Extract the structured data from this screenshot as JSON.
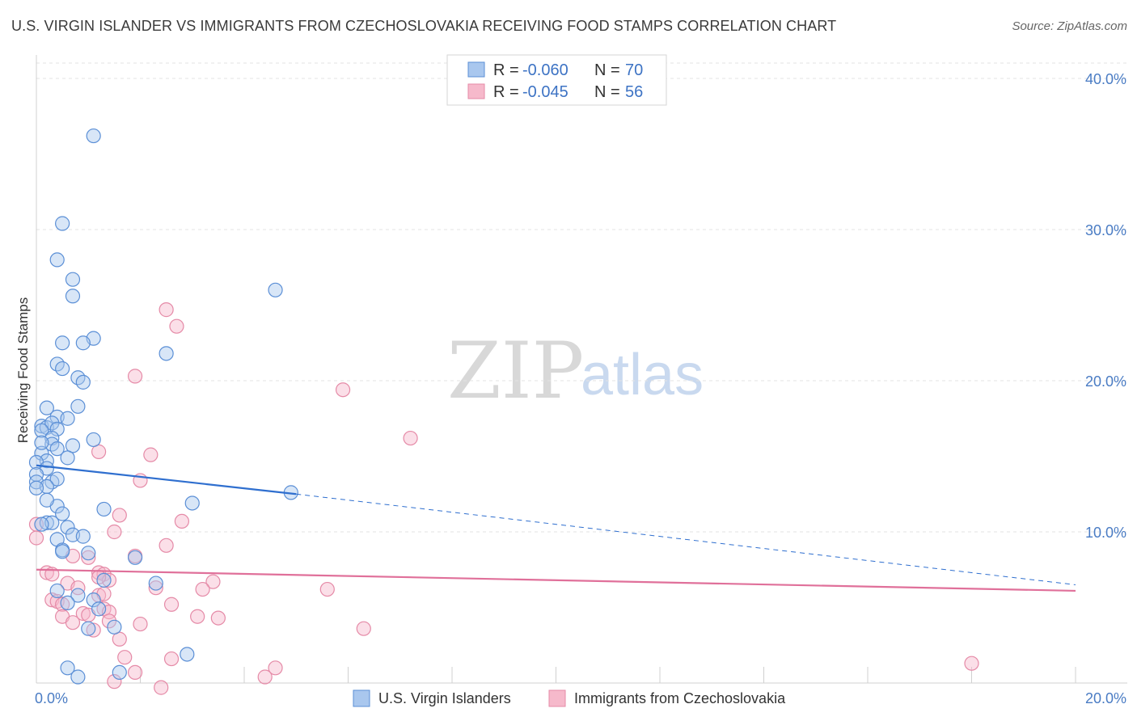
{
  "title": "U.S. VIRGIN ISLANDER VS IMMIGRANTS FROM CZECHOSLOVAKIA RECEIVING FOOD STAMPS CORRELATION CHART",
  "source": "Source: ZipAtlas.com",
  "watermark": {
    "zip": "ZIP",
    "atlas": "atlas"
  },
  "colors": {
    "blue_fill": "#a9c7ee",
    "blue_stroke": "#5b8fd6",
    "blue_line": "#2f6fcf",
    "pink_fill": "#f6b9cb",
    "pink_stroke": "#e58aa7",
    "pink_line": "#e0709a",
    "grid": "#e3e3e3",
    "axis_text": "#4a7cc4"
  },
  "legend": {
    "rows": [
      {
        "r_label": "R =",
        "r_value": "-0.060",
        "n_label": "N =",
        "n_value": "70"
      },
      {
        "r_label": "R =",
        "r_value": "-0.045",
        "n_label": "N =",
        "n_value": "56"
      }
    ]
  },
  "chart_data": {
    "type": "scatter",
    "xlabel": "",
    "ylabel": "Receiving Food Stamps",
    "xlim": [
      0,
      20
    ],
    "ylim": [
      0,
      40
    ],
    "x_tick_labels": [
      "0.0%",
      "20.0%"
    ],
    "y_tick_labels": [
      "10.0%",
      "20.0%",
      "30.0%",
      "40.0%"
    ],
    "y_ticks": [
      10,
      20,
      30,
      40
    ],
    "series": [
      {
        "name": "U.S. Virgin Islanders",
        "color": "blue",
        "r": -0.06,
        "n": 70,
        "trend": {
          "x0": 0,
          "y0": 14.4,
          "x1": 5.0,
          "y1": 12.5,
          "dashed_to_x": 20,
          "dashed_to_y": 6.5
        },
        "points": [
          [
            1.1,
            36.2
          ],
          [
            0.5,
            30.4
          ],
          [
            0.4,
            28.0
          ],
          [
            0.7,
            26.7
          ],
          [
            0.7,
            25.6
          ],
          [
            4.6,
            26.0
          ],
          [
            0.5,
            22.5
          ],
          [
            1.1,
            22.8
          ],
          [
            0.9,
            22.5
          ],
          [
            2.5,
            21.8
          ],
          [
            0.4,
            21.1
          ],
          [
            0.5,
            20.8
          ],
          [
            0.8,
            20.2
          ],
          [
            0.9,
            19.9
          ],
          [
            0.2,
            18.2
          ],
          [
            0.8,
            18.3
          ],
          [
            0.4,
            17.6
          ],
          [
            0.6,
            17.5
          ],
          [
            0.1,
            17.0
          ],
          [
            0.2,
            16.9
          ],
          [
            0.3,
            17.2
          ],
          [
            0.4,
            16.8
          ],
          [
            0.1,
            16.7
          ],
          [
            0.3,
            16.2
          ],
          [
            1.1,
            16.1
          ],
          [
            0.3,
            15.8
          ],
          [
            0.7,
            15.7
          ],
          [
            0.4,
            15.5
          ],
          [
            0.1,
            15.2
          ],
          [
            0.2,
            14.7
          ],
          [
            0.0,
            14.6
          ],
          [
            0.2,
            14.2
          ],
          [
            0.0,
            13.8
          ],
          [
            0.0,
            13.3
          ],
          [
            0.3,
            13.3
          ],
          [
            0.4,
            13.5
          ],
          [
            0.2,
            13.0
          ],
          [
            0.0,
            12.9
          ],
          [
            4.9,
            12.6
          ],
          [
            3.0,
            11.9
          ],
          [
            0.4,
            11.7
          ],
          [
            1.3,
            11.5
          ],
          [
            0.5,
            11.2
          ],
          [
            0.2,
            10.6
          ],
          [
            0.3,
            10.6
          ],
          [
            0.1,
            10.5
          ],
          [
            0.6,
            10.3
          ],
          [
            0.7,
            9.8
          ],
          [
            0.9,
            9.7
          ],
          [
            0.4,
            9.5
          ],
          [
            0.5,
            8.8
          ],
          [
            1.0,
            8.6
          ],
          [
            0.5,
            8.7
          ],
          [
            1.9,
            8.3
          ],
          [
            1.3,
            6.8
          ],
          [
            2.3,
            6.6
          ],
          [
            0.4,
            6.1
          ],
          [
            0.8,
            5.8
          ],
          [
            1.1,
            5.5
          ],
          [
            0.6,
            5.3
          ],
          [
            1.2,
            4.9
          ],
          [
            1.0,
            3.6
          ],
          [
            1.5,
            3.7
          ],
          [
            2.9,
            1.9
          ],
          [
            0.6,
            1.0
          ],
          [
            1.6,
            0.7
          ],
          [
            0.8,
            0.4
          ],
          [
            0.1,
            15.9
          ],
          [
            0.2,
            12.1
          ],
          [
            0.6,
            14.9
          ]
        ]
      },
      {
        "name": "Immigrants from Czechoslovakia",
        "color": "pink",
        "r": -0.045,
        "n": 56,
        "trend": {
          "x0": 0,
          "y0": 7.5,
          "x1": 20,
          "y1": 6.1
        },
        "points": [
          [
            0.0,
            10.5
          ],
          [
            0.0,
            9.6
          ],
          [
            2.5,
            24.7
          ],
          [
            2.7,
            23.6
          ],
          [
            1.9,
            20.3
          ],
          [
            5.9,
            19.4
          ],
          [
            7.2,
            16.2
          ],
          [
            2.2,
            15.1
          ],
          [
            1.2,
            15.3
          ],
          [
            2.0,
            13.4
          ],
          [
            1.6,
            11.1
          ],
          [
            2.8,
            10.7
          ],
          [
            1.5,
            10.0
          ],
          [
            2.5,
            9.1
          ],
          [
            0.7,
            8.4
          ],
          [
            1.0,
            8.3
          ],
          [
            1.9,
            8.4
          ],
          [
            1.2,
            7.3
          ],
          [
            1.3,
            7.2
          ],
          [
            1.4,
            6.8
          ],
          [
            0.2,
            7.3
          ],
          [
            0.3,
            7.2
          ],
          [
            0.6,
            6.6
          ],
          [
            3.4,
            6.7
          ],
          [
            5.6,
            6.2
          ],
          [
            2.3,
            6.3
          ],
          [
            3.2,
            6.2
          ],
          [
            1.2,
            5.8
          ],
          [
            1.3,
            5.9
          ],
          [
            0.3,
            5.5
          ],
          [
            0.4,
            5.4
          ],
          [
            0.5,
            5.2
          ],
          [
            2.6,
            5.2
          ],
          [
            1.3,
            4.9
          ],
          [
            1.4,
            4.7
          ],
          [
            0.9,
            4.6
          ],
          [
            3.1,
            4.4
          ],
          [
            0.5,
            4.4
          ],
          [
            1.0,
            4.5
          ],
          [
            3.5,
            4.3
          ],
          [
            1.4,
            4.1
          ],
          [
            0.7,
            4.0
          ],
          [
            2.0,
            3.9
          ],
          [
            6.3,
            3.6
          ],
          [
            1.1,
            3.5
          ],
          [
            1.6,
            2.9
          ],
          [
            1.7,
            1.7
          ],
          [
            2.6,
            1.6
          ],
          [
            4.6,
            1.0
          ],
          [
            18.0,
            1.3
          ],
          [
            1.9,
            0.7
          ],
          [
            4.4,
            0.4
          ],
          [
            1.5,
            0.1
          ],
          [
            2.4,
            -0.3
          ],
          [
            0.8,
            6.3
          ],
          [
            1.2,
            7.0
          ]
        ]
      }
    ]
  }
}
